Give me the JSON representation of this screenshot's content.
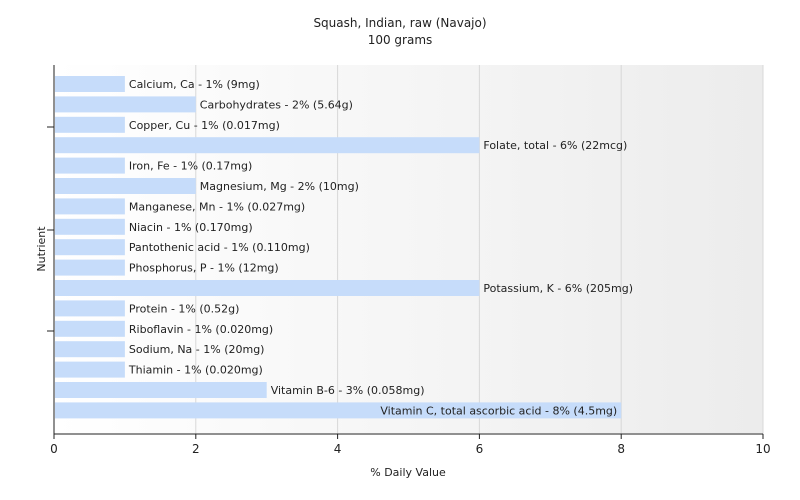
{
  "chart_data": {
    "type": "bar",
    "orientation": "horizontal",
    "title": "Squash, Indian, raw (Navajo)",
    "subtitle": "100 grams",
    "xlabel": "% Daily Value",
    "ylabel": "Nutrient",
    "xlim": [
      0,
      10
    ],
    "xticks": [
      0,
      2,
      4,
      6,
      8,
      10
    ],
    "grid": "vertical",
    "bar_color": "#c6dcfa",
    "categories": [
      "Calcium, Ca",
      "Carbohydrates",
      "Copper, Cu",
      "Folate, total",
      "Iron, Fe",
      "Magnesium, Mg",
      "Manganese, Mn",
      "Niacin",
      "Pantothenic acid",
      "Phosphorus, P",
      "Potassium, K",
      "Protein",
      "Riboflavin",
      "Sodium, Na",
      "Thiamin",
      "Vitamin B-6",
      "Vitamin C, total ascorbic acid"
    ],
    "values": [
      1,
      2,
      1,
      6,
      1,
      2,
      1,
      1,
      1,
      1,
      6,
      1,
      1,
      1,
      1,
      3,
      8
    ],
    "labels": [
      "Calcium, Ca - 1% (9mg)",
      "Carbohydrates - 2% (5.64g)",
      "Copper, Cu - 1% (0.017mg)",
      "Folate, total - 6% (22mcg)",
      "Iron, Fe - 1% (0.17mg)",
      "Magnesium, Mg - 2% (10mg)",
      "Manganese, Mn - 1% (0.027mg)",
      "Niacin - 1% (0.170mg)",
      "Pantothenic acid - 1% (0.110mg)",
      "Phosphorus, P - 1% (12mg)",
      "Potassium, K - 6% (205mg)",
      "Protein - 1% (0.52g)",
      "Riboflavin - 1% (0.020mg)",
      "Sodium, Na - 1% (20mg)",
      "Thiamin - 1% (0.020mg)",
      "Vitamin B-6 - 3% (0.058mg)",
      "Vitamin C, total ascorbic acid - 8% (4.5mg)"
    ]
  }
}
